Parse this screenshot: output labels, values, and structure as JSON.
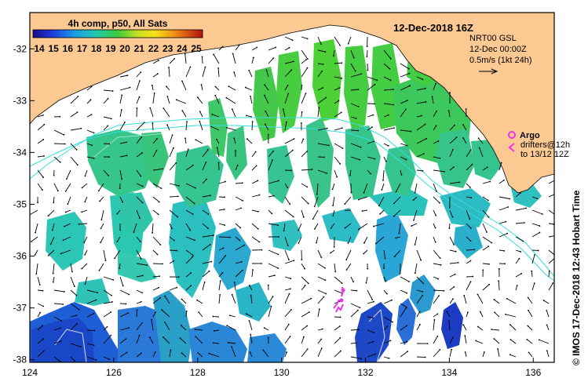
{
  "map": {
    "date_title": "12-Dec-2018 16Z",
    "colorbar": {
      "title": "4h comp, p50, All Sats",
      "ticks": [
        "14",
        "15",
        "16",
        "17",
        "18",
        "19",
        "20",
        "21",
        "22",
        "23",
        "24",
        "25"
      ],
      "min": 14,
      "max": 25
    },
    "current_info": {
      "line1": "NRT00 GSL",
      "line2": "12-Dec 00:00Z",
      "line3": "0.5m/s (1kt 24h)"
    },
    "legend": {
      "argo_label": "Argo",
      "drifters_line1": "drifters@12h",
      "drifters_line2": "to 13/12 12Z"
    },
    "credit": "© IMOS 17-Dec-2018 12:43 Hobart Time",
    "x_ticks": [
      "124",
      "126",
      "128",
      "130",
      "132",
      "134",
      "136"
    ],
    "y_ticks": [
      "-32",
      "-33",
      "-34",
      "-35",
      "-36",
      "-37",
      "-38"
    ],
    "x_range": [
      124,
      136.5
    ],
    "y_range": [
      -38.05,
      -31.3
    ],
    "colors": {
      "land": "#fdc992",
      "argo": "#ee33ee",
      "shelf_contour": "#33dddd",
      "frame": "#000000"
    }
  }
}
